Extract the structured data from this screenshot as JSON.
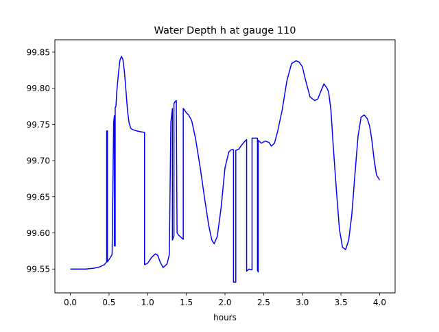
{
  "chart_data": {
    "type": "line",
    "title": "Water Depth h at gauge 110",
    "xlabel": "hours",
    "ylabel": "",
    "xlim": [
      -0.2,
      4.2
    ],
    "ylim": [
      99.517,
      99.867
    ],
    "xticks": [
      0.0,
      0.5,
      1.0,
      1.5,
      2.0,
      2.5,
      3.0,
      3.5,
      4.0
    ],
    "xtick_labels": [
      "0.0",
      "0.5",
      "1.0",
      "1.5",
      "2.0",
      "2.5",
      "3.0",
      "3.5",
      "4.0"
    ],
    "yticks": [
      99.55,
      99.6,
      99.65,
      99.7,
      99.75,
      99.8,
      99.85
    ],
    "ytick_labels": [
      "99.55",
      "99.60",
      "99.65",
      "99.70",
      "99.75",
      "99.80",
      "99.85"
    ],
    "grid": false,
    "series": [
      {
        "color": "#0000ff",
        "x": [
          0.0,
          0.2,
          0.3,
          0.38,
          0.44,
          0.47,
          0.47,
          0.48,
          0.48,
          0.5,
          0.54,
          0.56,
          0.56,
          0.57,
          0.57,
          0.58,
          0.58,
          0.59,
          0.6,
          0.62,
          0.64,
          0.66,
          0.68,
          0.7,
          0.72,
          0.74,
          0.76,
          0.78,
          0.8,
          0.83,
          0.86,
          0.9,
          0.96,
          0.96,
          1.0,
          1.05,
          1.1,
          1.13,
          1.16,
          1.2,
          1.25,
          1.28,
          1.3,
          1.3,
          1.32,
          1.32,
          1.34,
          1.34,
          1.36,
          1.37,
          1.38,
          1.38,
          1.4,
          1.43,
          1.46,
          1.46,
          1.47,
          1.5,
          1.53,
          1.57,
          1.62,
          1.68,
          1.74,
          1.79,
          1.83,
          1.86,
          1.9,
          1.95,
          2.0,
          2.05,
          2.08,
          2.11,
          2.11,
          2.14,
          2.14,
          2.18,
          2.22,
          2.26,
          2.28,
          2.28,
          2.31,
          2.35,
          2.35,
          2.42,
          2.42,
          2.43,
          2.43,
          2.47,
          2.52,
          2.57,
          2.6,
          2.64,
          2.68,
          2.74,
          2.8,
          2.86,
          2.92,
          2.96,
          3.0,
          3.04,
          3.1,
          3.16,
          3.2,
          3.24,
          3.28,
          3.32,
          3.34,
          3.37,
          3.4,
          3.44,
          3.48,
          3.52,
          3.56,
          3.6,
          3.64,
          3.68,
          3.72,
          3.76,
          3.8,
          3.84,
          3.87,
          3.9,
          3.93,
          3.96,
          4.0
        ],
        "y": [
          99.55,
          99.55,
          99.551,
          99.553,
          99.556,
          99.56,
          99.741,
          99.741,
          99.56,
          99.563,
          99.57,
          99.753,
          99.753,
          99.762,
          99.582,
          99.582,
          99.773,
          99.775,
          99.795,
          99.818,
          99.838,
          99.844,
          99.84,
          99.822,
          99.796,
          99.768,
          99.752,
          99.745,
          99.743,
          99.742,
          99.741,
          99.74,
          99.739,
          99.556,
          99.558,
          99.566,
          99.571,
          99.569,
          99.56,
          99.552,
          99.557,
          99.57,
          99.753,
          99.753,
          99.772,
          99.59,
          99.596,
          99.779,
          99.782,
          99.783,
          99.6,
          99.6,
          99.597,
          99.594,
          99.591,
          99.772,
          99.771,
          99.766,
          99.763,
          99.755,
          99.73,
          99.69,
          99.645,
          99.61,
          99.59,
          99.585,
          99.595,
          99.635,
          99.69,
          99.712,
          99.715,
          99.715,
          99.532,
          99.532,
          99.714,
          99.716,
          99.722,
          99.727,
          99.729,
          99.547,
          99.55,
          99.549,
          99.731,
          99.731,
          99.548,
          99.546,
          99.728,
          99.724,
          99.727,
          99.725,
          99.72,
          99.724,
          99.74,
          99.77,
          99.81,
          99.834,
          99.838,
          99.836,
          99.83,
          99.812,
          99.788,
          99.783,
          99.785,
          99.796,
          99.806,
          99.8,
          99.795,
          99.77,
          99.72,
          99.66,
          99.605,
          99.58,
          99.577,
          99.59,
          99.625,
          99.68,
          99.733,
          99.76,
          99.763,
          99.758,
          99.748,
          99.728,
          99.7,
          99.68,
          99.673
        ]
      }
    ]
  }
}
